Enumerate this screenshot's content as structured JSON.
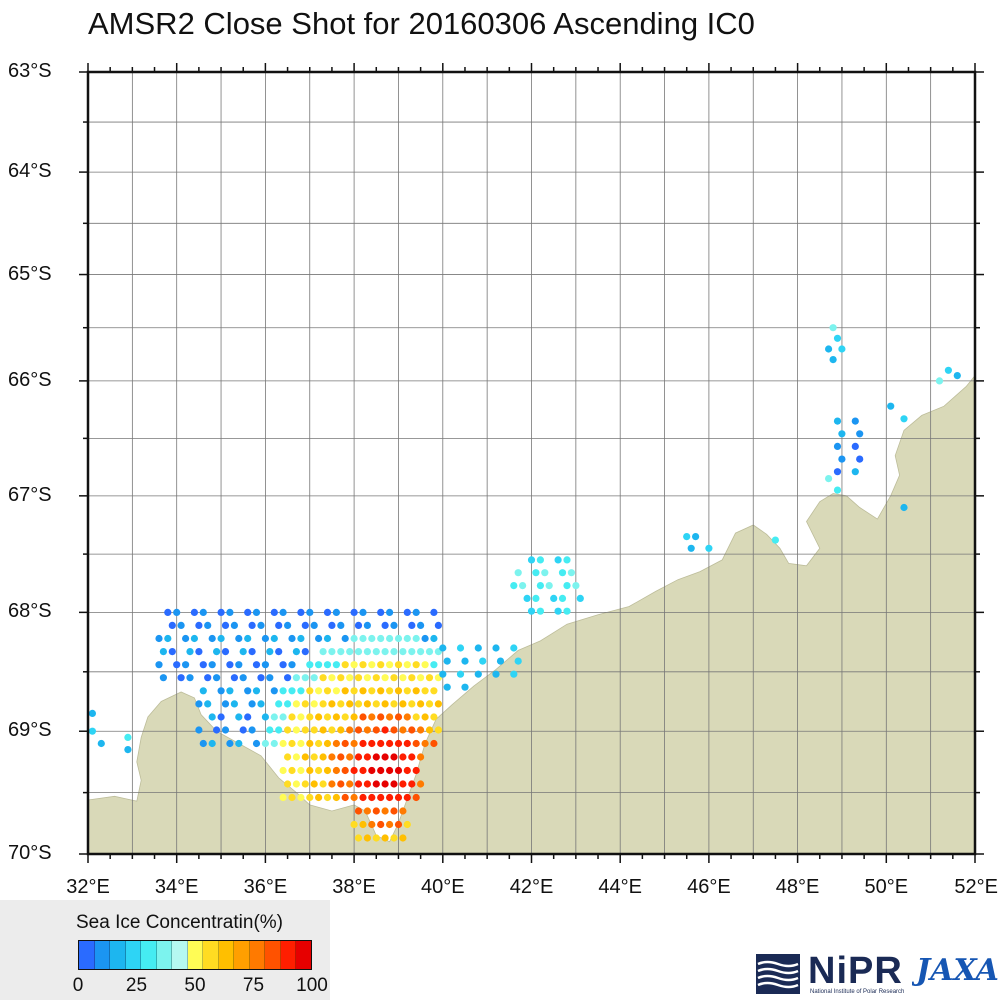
{
  "title": "AMSR2 Close Shot for 20160306 Ascending IC0",
  "map": {
    "lon_range": [
      32,
      52
    ],
    "lat_range": [
      -70,
      -63
    ],
    "lat_labels": [
      "63°S",
      "64°S",
      "65°S",
      "66°S",
      "67°S",
      "68°S",
      "69°S",
      "70°S"
    ],
    "lon_labels": [
      "32°E",
      "34°E",
      "36°E",
      "38°E",
      "40°E",
      "42°E",
      "44°E",
      "46°E",
      "48°E",
      "50°E",
      "52°E"
    ],
    "land_color": "#d9d9b8",
    "grid_color": "#777777"
  },
  "legend": {
    "title": "Sea Ice Concentratin(%)",
    "ticks": [
      "0",
      "25",
      "50",
      "75",
      "100"
    ],
    "colors": [
      "#2a6bff",
      "#1b95f2",
      "#1db6ef",
      "#2ed4f5",
      "#45ecf2",
      "#7cf3ee",
      "#b5f8f1",
      "#fffc55",
      "#ffdc22",
      "#ffbf00",
      "#ff9f00",
      "#ff7a00",
      "#ff5200",
      "#ff1e00",
      "#e60000"
    ]
  },
  "logos": {
    "nipr_name": "NiPR",
    "nipr_sub": "National Institute of Polar Research",
    "jaxa_name": "JAXA"
  }
}
